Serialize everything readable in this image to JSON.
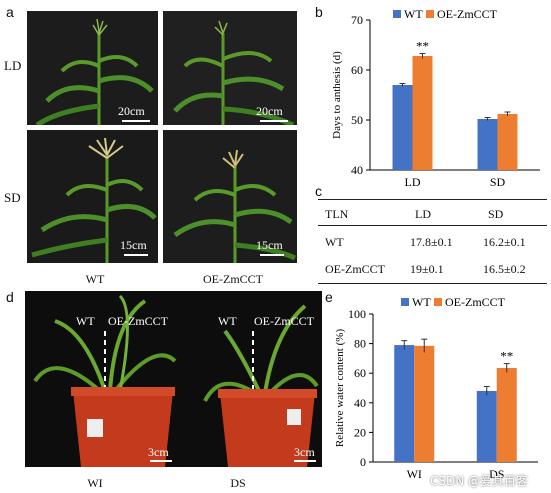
{
  "panels": {
    "a": {
      "letter": "a",
      "row_labels": [
        "LD",
        "SD"
      ],
      "col_labels": [
        "WT",
        "OE-ZmCCT"
      ],
      "scale_labels": [
        "20cm",
        "20cm",
        "15cm",
        "15cm"
      ]
    },
    "b": {
      "letter": "b"
    },
    "c": {
      "letter": "c",
      "header": [
        "TLN",
        "LD",
        "SD"
      ],
      "rows": [
        [
          "WT",
          "17.8±0.1",
          "16.2±0.1"
        ],
        [
          "OE-ZmCCT",
          "19±0.1",
          "16.5±0.2"
        ]
      ]
    },
    "d": {
      "letter": "d",
      "pot_labels": [
        "WT",
        "OE-ZmCCT",
        "WT",
        "OE-ZmCCT"
      ],
      "scale_labels": [
        "3cm",
        "3cm"
      ],
      "col_labels": [
        "WI",
        "DS"
      ]
    },
    "e": {
      "letter": "e"
    }
  },
  "watermark": "CSDN @爱其百客",
  "colors": {
    "wt": "#4472c4",
    "oe": "#ed7d31"
  },
  "chart_data": [
    {
      "type": "bar",
      "panel": "b",
      "categories": [
        "LD",
        "SD"
      ],
      "series": [
        {
          "name": "WT",
          "values": [
            57.0,
            50.2
          ],
          "errors": [
            0.3,
            0.3
          ]
        },
        {
          "name": "OE-ZmCCT",
          "values": [
            62.8,
            51.2
          ],
          "errors": [
            0.5,
            0.4
          ]
        }
      ],
      "ylabel": "Days to anthesis (d)",
      "ylim": [
        40,
        70
      ],
      "yticks": [
        40,
        50,
        60,
        70
      ],
      "annotations": [
        {
          "category": "LD",
          "series": "OE-ZmCCT",
          "text": "**"
        }
      ],
      "legend": "top"
    },
    {
      "type": "bar",
      "panel": "e",
      "categories": [
        "WI",
        "DS"
      ],
      "series": [
        {
          "name": "WT",
          "values": [
            79,
            48
          ],
          "errors": [
            3,
            3
          ]
        },
        {
          "name": "OE-ZmCCT",
          "values": [
            78.5,
            63.5
          ],
          "errors": [
            4.5,
            3
          ]
        }
      ],
      "ylabel": "Relative water content (%)",
      "ylim": [
        0,
        100
      ],
      "yticks": [
        0,
        20,
        40,
        60,
        80,
        100
      ],
      "annotations": [
        {
          "category": "DS",
          "series": "OE-ZmCCT",
          "text": "**"
        }
      ],
      "legend": "top"
    }
  ]
}
